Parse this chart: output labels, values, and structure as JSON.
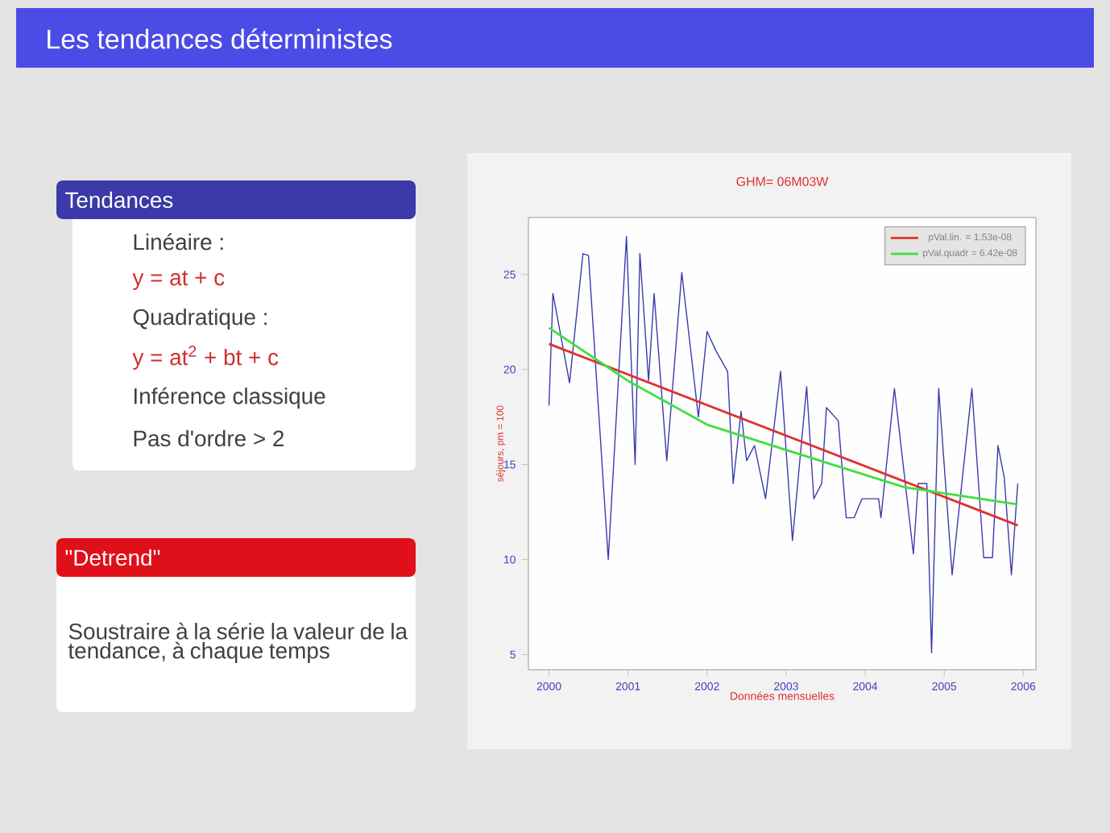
{
  "chart_data": {
    "type": "line",
    "title": "GHM= 06M03W",
    "xlabel": "Données mensuelles",
    "ylabel": "séjours, pm = 100",
    "annotations": [
      "Les tendances déterministes",
      "Tendances",
      "Linéaire :",
      "y = at + c",
      "Quadratique :",
      "y = at$^{2}$ + bt + c",
      "Inférence classique",
      "Pas d'ordre > 2",
      "\"Detrend\"",
      "Soustraire à la série la valeur de la tendance, à chaque temps"
    ],
    "xlim": [
      1999.74,
      2006.16
    ],
    "ylim": [
      4.2,
      28
    ],
    "xticks": [
      2000,
      2001,
      2002,
      2003,
      2004,
      2005,
      2006
    ],
    "yticks": [
      5,
      10,
      15,
      20,
      25
    ],
    "grid": false,
    "legend": "top right",
    "marker": "none",
    "line_style": "solid",
    "series": [
      {
        "color": "#3a3ab0",
        "x": [
          2000.0,
          2000.05,
          2000.26,
          2000.43,
          2000.5,
          2000.75,
          2000.98,
          2001.09,
          2001.15,
          2001.26,
          2001.33,
          2001.49,
          2001.68,
          2001.89,
          2002.0,
          2002.11,
          2002.26,
          2002.33,
          2002.43,
          2002.5,
          2002.6,
          2002.74,
          2002.93,
          2003.08,
          2003.26,
          2003.35,
          2003.45,
          2003.51,
          2003.66,
          2003.76,
          2003.86,
          2003.96,
          2004.17,
          2004.2,
          2004.37,
          2004.61,
          2004.67,
          2004.78,
          2004.84,
          2004.93,
          2005.1,
          2005.35,
          2005.5,
          2005.61,
          2005.68,
          2005.76,
          2005.85,
          2005.93
        ],
        "values": [
          18.1,
          24.0,
          19.3,
          26.1,
          26.0,
          10,
          27.0,
          15,
          26.1,
          19.4,
          24.0,
          15.2,
          25.1,
          17.5,
          22.0,
          21.0,
          19.9,
          14.0,
          17.8,
          15.2,
          16.0,
          13.2,
          19.9,
          11.0,
          19.1,
          13.2,
          14.0,
          18.0,
          17.3,
          12.2,
          12.2,
          13.2,
          13.2,
          12.2,
          19.0,
          10.3,
          14.0,
          14.0,
          5.1,
          19.0,
          9.2,
          19.0,
          10.1,
          10.1,
          16.0,
          14.3,
          9.2,
          14.0
        ]
      },
      {
        "name": "pVal.lin. = 1.53e-08",
        "color": "#e03030",
        "x": [
          2000.0,
          2005.93
        ],
        "values": [
          21.35,
          11.8
        ]
      },
      {
        "name": "pVal.quadr = 6.42e-08",
        "color": "#40e040",
        "x": [
          2000.0,
          2001.0,
          2002.0,
          2003.05,
          2004.5,
          2005.93
        ],
        "values": [
          22.2,
          19.4,
          17.1,
          15.7,
          13.8,
          12.9
        ]
      }
    ]
  }
}
